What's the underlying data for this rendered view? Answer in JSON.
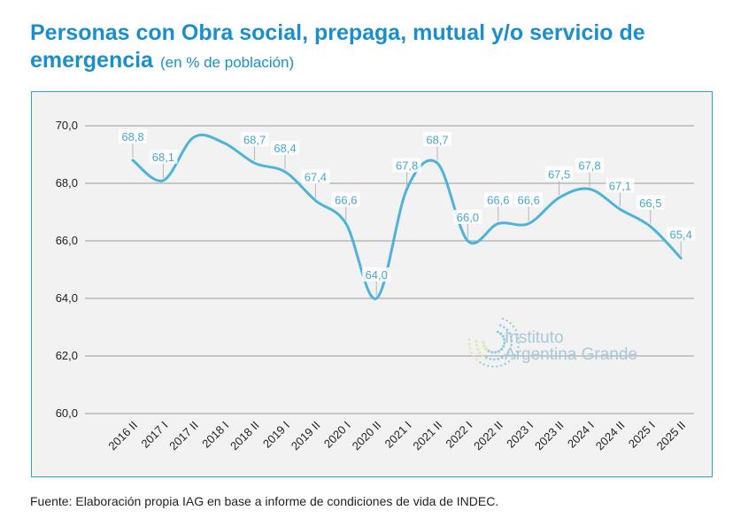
{
  "header": {
    "title": "Personas con Obra social, prepaga, mutual y/o servicio de emergencia",
    "subtitle": "(en % de población)"
  },
  "watermark": {
    "line1": "Instituto",
    "line2": "Argentina Grande"
  },
  "source": "Fuente: Elaboración propia IAG en base a informe de condiciones de vida de INDEC.",
  "colors": {
    "line": "#4eb3d9",
    "title": "#1a8fc9",
    "frame": "#2aa3d8",
    "grid": "#9a9a9a"
  },
  "chart_data": {
    "type": "line",
    "title": "Personas con Obra social, prepaga, mutual y/o servicio de emergencia",
    "subtitle": "(en % de población)",
    "categories": [
      "2016 II",
      "2017 I",
      "2017 II",
      "2018 I",
      "2018 II",
      "2019 I",
      "2019 II",
      "2020 I",
      "2020 II",
      "2021 I",
      "2021 II",
      "2022 I",
      "2022 II",
      "2023 I",
      "2023 II",
      "2024 I",
      "2024 II",
      "2025 I",
      "2025 II"
    ],
    "series": [
      {
        "values": [
          68.8,
          68.1,
          69.6,
          69.4,
          68.7,
          68.4,
          67.4,
          66.6,
          64.0,
          67.8,
          68.7,
          66.0,
          66.6,
          66.6,
          67.5,
          67.8,
          67.1,
          66.5,
          65.4
        ]
      }
    ],
    "data_labels": [
      {
        "category": "2016 II",
        "text": "68,8"
      },
      {
        "category": "2017 I",
        "text": "68,1"
      },
      {
        "category": "2018 II",
        "text": "68,7"
      },
      {
        "category": "2019 I",
        "text": "68,4"
      },
      {
        "category": "2019 II",
        "text": "67,4"
      },
      {
        "category": "2020 I",
        "text": "66,6"
      },
      {
        "category": "2020 II",
        "text": "64,0"
      },
      {
        "category": "2021 I",
        "text": "67,8"
      },
      {
        "category": "2021 II",
        "text": "68,7"
      },
      {
        "category": "2022 I",
        "text": "66,0"
      },
      {
        "category": "2022 II",
        "text": "66,6"
      },
      {
        "category": "2023 I",
        "text": "66,6"
      },
      {
        "category": "2023 II",
        "text": "67,5"
      },
      {
        "category": "2024 I",
        "text": "67,8"
      },
      {
        "category": "2024 II",
        "text": "67,1"
      },
      {
        "category": "2025 I",
        "text": "66,5"
      },
      {
        "category": "2025 II",
        "text": "65,4"
      }
    ],
    "yticks": [
      "60,0",
      "62,0",
      "64,0",
      "66,0",
      "68,0",
      "70,0"
    ],
    "ylim": [
      60,
      70
    ],
    "grid": true,
    "legend": "none"
  }
}
